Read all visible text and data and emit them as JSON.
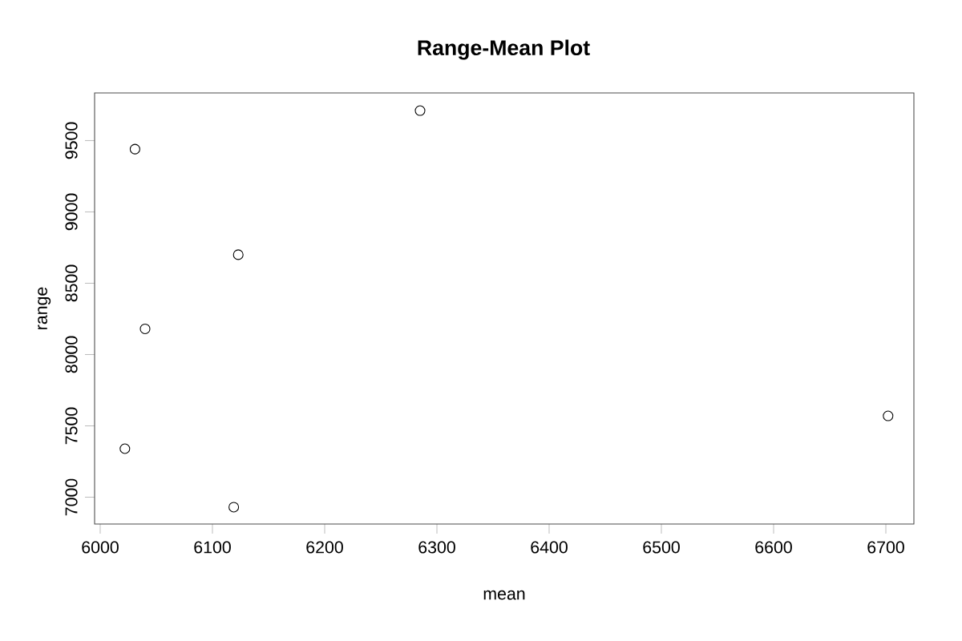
{
  "chart_data": {
    "type": "scatter",
    "title": "Range-Mean Plot",
    "xlabel": "mean",
    "ylabel": "range",
    "x": [
      6031,
      6285,
      6123,
      6040,
      6022,
      6119,
      6702
    ],
    "values": [
      9440,
      9710,
      8700,
      8180,
      7340,
      6930,
      7570
    ],
    "color": "#000000",
    "marker": "circle",
    "grid": false,
    "xlim": [
      5995,
      6725
    ],
    "ylim": [
      6812,
      9834
    ],
    "xticks": [
      6000,
      6100,
      6200,
      6300,
      6400,
      6500,
      6600,
      6700
    ],
    "yticks": [
      7000,
      7500,
      8000,
      8500,
      9000,
      9500
    ]
  }
}
